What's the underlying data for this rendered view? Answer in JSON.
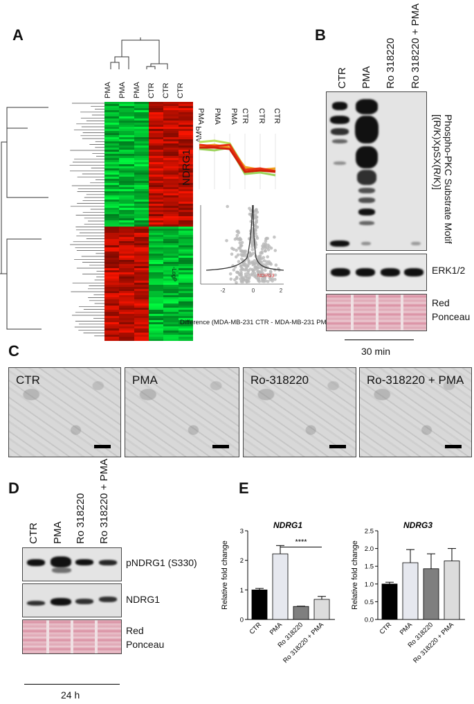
{
  "panels": {
    "a": "A",
    "b": "B",
    "c": "C",
    "d": "D",
    "e": "E"
  },
  "panel_a": {
    "dendro_labels": [
      "PMA",
      "PMA",
      "PMA",
      "CTR",
      "CTR",
      "CTR"
    ],
    "profile_labels": [
      "PMA",
      "PMA",
      "PMA",
      "CTR",
      "CTR",
      "CTR"
    ],
    "gene": "NDRG1",
    "volcano_ylabel": "-LogP",
    "volcano_point_label": "NDRG3",
    "volcano_xticks": [
      "-2",
      "0",
      "2"
    ],
    "volcano_xlabel": "Difference (MDA-MB-231 CTR - MDA-MB-231 PMA)"
  },
  "panel_b": {
    "lanes": [
      "CTR",
      "PMA",
      "Ro 318220",
      "Ro 318220 + PMA"
    ],
    "blot1_label": "Phospho-PKC Substrate Motif [(R/K)XpSX(R/K)]",
    "blot2_label": "ERK1/2",
    "blot3_label_1": "Red",
    "blot3_label_2": "Ponceau",
    "time": "30 min"
  },
  "panel_c": {
    "images": [
      "CTR",
      "PMA",
      "Ro-318220",
      "Ro-318220 + PMA"
    ]
  },
  "panel_d": {
    "lanes": [
      "CTR",
      "PMA",
      "Ro 318220",
      "Ro 318220 + PMA"
    ],
    "blot1_label": "pNDRG1 (S330)",
    "blot2_label": "NDRG1",
    "blot3_label_1": "Red",
    "blot3_label_2": "Ponceau",
    "time": "24 h"
  },
  "chart_data": [
    {
      "type": "bar",
      "title": "NDRG1",
      "ylabel": "Relative fold change",
      "categories": [
        "CTR",
        "PMA",
        "Ro 318220",
        "Ro 318220 + PMA"
      ],
      "values": [
        1.0,
        2.22,
        0.44,
        0.68
      ],
      "errors": [
        0.05,
        0.28,
        0.01,
        0.1
      ],
      "colors": [
        "#000000",
        "#e6e8ef",
        "#7f7f7f",
        "#dcdcdc"
      ],
      "ylim": [
        0,
        3
      ],
      "yticks": [
        "0",
        "1",
        "2",
        "3"
      ],
      "significance": "****"
    },
    {
      "type": "bar",
      "title": "NDRG3",
      "ylabel": "Relative fold change",
      "categories": [
        "CTR",
        "PMA",
        "Ro 318220",
        "Ro 318220 + PMA"
      ],
      "values": [
        1.0,
        1.6,
        1.43,
        1.65
      ],
      "errors": [
        0.05,
        0.37,
        0.42,
        0.35
      ],
      "colors": [
        "#000000",
        "#e6e8ef",
        "#7f7f7f",
        "#dcdcdc"
      ],
      "ylim": [
        0,
        2.5
      ],
      "yticks": [
        "0.0",
        "0.5",
        "1.0",
        "1.5",
        "2.0",
        "2.5"
      ]
    }
  ]
}
